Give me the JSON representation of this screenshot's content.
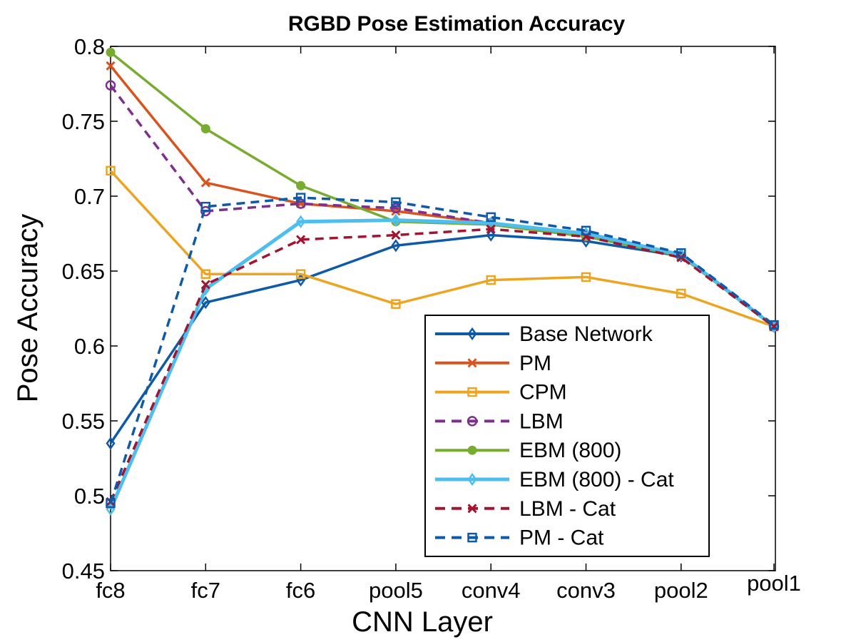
{
  "chart_data": {
    "type": "line",
    "title": "RGBD Pose Estimation Accuracy",
    "xlabel": "CNN Layer",
    "ylabel": "Pose Accuracy",
    "categories": [
      "fc8",
      "fc7",
      "fc6",
      "pool5",
      "conv4",
      "conv3",
      "pool2",
      "pool1"
    ],
    "ylim": [
      0.45,
      0.8
    ],
    "yticks": [
      0.45,
      0.5,
      0.55,
      0.6,
      0.65,
      0.7,
      0.75,
      0.8
    ],
    "ytick_labels": [
      "0.45",
      "0.5",
      "0.55",
      "0.6",
      "0.65",
      "0.7",
      "0.75",
      "0.8"
    ],
    "grid": false,
    "legend_position": "bottom-right",
    "series": [
      {
        "name": "Base Network",
        "color": "#0F5AA8",
        "dash": "solid",
        "marker": "diamond",
        "values": [
          0.535,
          0.629,
          0.644,
          0.667,
          0.674,
          0.67,
          0.66,
          0.613
        ]
      },
      {
        "name": "PM",
        "color": "#D9531E",
        "dash": "solid",
        "marker": "x",
        "values": [
          0.787,
          0.709,
          0.695,
          0.69,
          0.682,
          0.674,
          0.66,
          0.613
        ]
      },
      {
        "name": "CPM",
        "color": "#EDA521",
        "dash": "solid",
        "marker": "square",
        "values": [
          0.717,
          0.648,
          0.648,
          0.628,
          0.644,
          0.646,
          0.635,
          0.613
        ]
      },
      {
        "name": "LBM",
        "color": "#7E2F8E",
        "dash": "dashed",
        "marker": "circle",
        "values": [
          0.774,
          0.69,
          0.695,
          0.692,
          0.682,
          0.674,
          0.66,
          0.613
        ]
      },
      {
        "name": "EBM (800)",
        "color": "#77AC30",
        "dash": "solid",
        "marker": "dot",
        "values": [
          0.796,
          0.745,
          0.707,
          0.683,
          0.681,
          0.673,
          0.66,
          0.613
        ]
      },
      {
        "name": "EBM (800) - Cat",
        "color": "#4DBEEE",
        "dash": "solid",
        "marker": "diamond",
        "values": [
          0.491,
          0.638,
          0.683,
          0.684,
          0.682,
          0.675,
          0.661,
          0.613
        ]
      },
      {
        "name": "LBM - Cat",
        "color": "#A2142F",
        "dash": "dashed",
        "marker": "x",
        "values": [
          0.496,
          0.641,
          0.671,
          0.674,
          0.678,
          0.673,
          0.659,
          0.613
        ]
      },
      {
        "name": "PM - Cat",
        "color": "#0F5AA8",
        "dash": "dashed",
        "marker": "square",
        "values": [
          0.495,
          0.693,
          0.699,
          0.696,
          0.686,
          0.677,
          0.662,
          0.614
        ]
      }
    ]
  }
}
